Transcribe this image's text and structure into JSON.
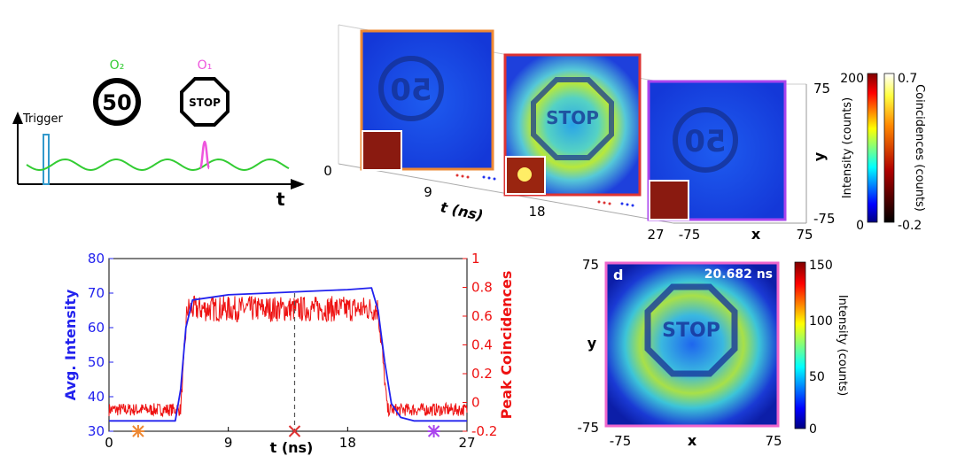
{
  "schematic": {
    "trigger_label": "Trigger",
    "t_label": "t",
    "o2_label": "O₂",
    "o1_label": "O₁",
    "speed_sign_text": "50",
    "stop_sign_text": "STOP",
    "colors": {
      "wave": "#33cc33",
      "trigger": "#3399cc",
      "pulse": "#ee55dd"
    }
  },
  "volume": {
    "t_axis_label": "t (ns)",
    "t_ticks": [
      "0",
      "9",
      "18",
      "27"
    ],
    "x_label": "x",
    "y_label": "y",
    "x_ticks": [
      "-75",
      "75"
    ],
    "y_ticks": [
      "75",
      "-75"
    ],
    "frames": [
      {
        "name": "early",
        "border": "#ee8833",
        "object": "50"
      },
      {
        "name": "middle",
        "border": "#dd3333",
        "object": "STOP"
      },
      {
        "name": "late",
        "border": "#aa44ee",
        "object": "50"
      }
    ],
    "colorbar_intensity": {
      "label": "Intensity (counts)",
      "max": "200",
      "min": "0"
    },
    "colorbar_coinc": {
      "label": "Coincidences (counts)",
      "max": "0.7",
      "min": "-0.2"
    }
  },
  "frame_d": {
    "panel_label": "d",
    "time_label": "20.682 ns",
    "x_label": "x",
    "y_label": "y",
    "x_ticks": [
      "-75",
      "75"
    ],
    "y_ticks": [
      "75",
      "-75"
    ],
    "object_text": "STOP",
    "border": "#ee66cc",
    "colorbar": {
      "label": "Intensity (counts)",
      "ticks": [
        "150",
        "100",
        "50",
        "0"
      ]
    }
  },
  "chart_data": {
    "type": "line",
    "xlabel": "t (ns)",
    "ylabel_left": "Avg. Intensity",
    "ylabel_right": "Peak Coincidences",
    "xlim": [
      0,
      27
    ],
    "x_ticks": [
      "0",
      "9",
      "18",
      "27"
    ],
    "ylim_left": [
      30,
      80
    ],
    "y_ticks_left": [
      "30",
      "40",
      "50",
      "60",
      "70",
      "80"
    ],
    "ylim_right": [
      -0.2,
      1
    ],
    "y_ticks_right": [
      "-0.2",
      "0",
      "0.2",
      "0.4",
      "0.6",
      "0.8",
      "1"
    ],
    "series": [
      {
        "name": "Avg. Intensity",
        "axis": "left",
        "color": "#2222ee",
        "x": [
          0,
          5.0,
          5.4,
          5.8,
          6.3,
          9,
          12,
          15,
          18,
          19.8,
          20.3,
          20.8,
          21.3,
          22.0,
          23,
          27
        ],
        "y": [
          33,
          33,
          42,
          60,
          68,
          69.5,
          70,
          70.5,
          71,
          71.5,
          65,
          50,
          38,
          34,
          33,
          33
        ]
      },
      {
        "name": "Peak Coincidences",
        "axis": "right",
        "color": "#ee1111",
        "x": [
          0,
          5.4,
          5.9,
          20.3,
          21.0,
          27
        ],
        "y": [
          -0.05,
          -0.05,
          0.65,
          0.65,
          -0.05,
          -0.05
        ]
      }
    ],
    "markers": [
      {
        "x": 2.2,
        "color": "#ee8833",
        "symbol": "*"
      },
      {
        "x": 14,
        "color": "#dd3333",
        "symbol": "x"
      },
      {
        "x": 24.5,
        "color": "#aa44ee",
        "symbol": "*"
      }
    ],
    "guide_line_x": 14
  }
}
